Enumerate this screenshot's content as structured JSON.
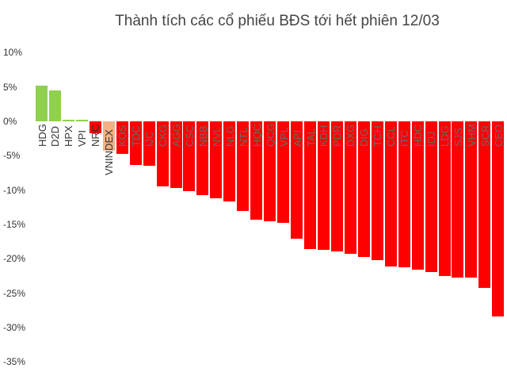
{
  "chart_data": {
    "type": "bar",
    "title": "Thành tích các cổ phiếu BĐS tới hết phiên 12/03",
    "xlabel": "",
    "ylabel": "",
    "ylim": [
      -35,
      10
    ],
    "yticks": [
      "10%",
      "5%",
      "0%",
      "-5%",
      "-10%",
      "-15%",
      "-20%",
      "-25%",
      "-30%",
      "-35%"
    ],
    "grid": false,
    "legend": "none",
    "categories": [
      "HDG",
      "D2D",
      "HPX",
      "VPI",
      "NRC",
      "VNINDEX",
      "KOS",
      "TDC",
      "IJC",
      "CKG",
      "AGG",
      "CSC",
      "NBB",
      "NVL",
      "NLG",
      "NTL",
      "HQC",
      "QCG",
      "VPL",
      "API",
      "TAL",
      "KDH",
      "PDR",
      "DXG",
      "DIG",
      "TCH",
      "CCL",
      "ITC",
      "HDC",
      "IDJ",
      "LDG",
      "SJS",
      "VHM",
      "SCR",
      "CEO"
    ],
    "values": [
      5.2,
      4.5,
      0.2,
      0.2,
      -1.7,
      -4.3,
      -4.7,
      -6.4,
      -6.5,
      -9.5,
      -9.7,
      -10.2,
      -10.7,
      -11.2,
      -11.7,
      -13.0,
      -14.3,
      -14.5,
      -14.8,
      -17.1,
      -18.6,
      -18.7,
      -18.9,
      -19.3,
      -19.7,
      -20.2,
      -21.1,
      -21.2,
      -21.6,
      -21.9,
      -22.5,
      -22.7,
      -22.7,
      -24.2,
      -28.4
    ],
    "colors": {
      "positive": "#8fd14f",
      "negative": "#ff0000",
      "index": "#f4b183",
      "label_on_bar": "#6b6b6b",
      "label_off_bar": "#333333"
    }
  }
}
